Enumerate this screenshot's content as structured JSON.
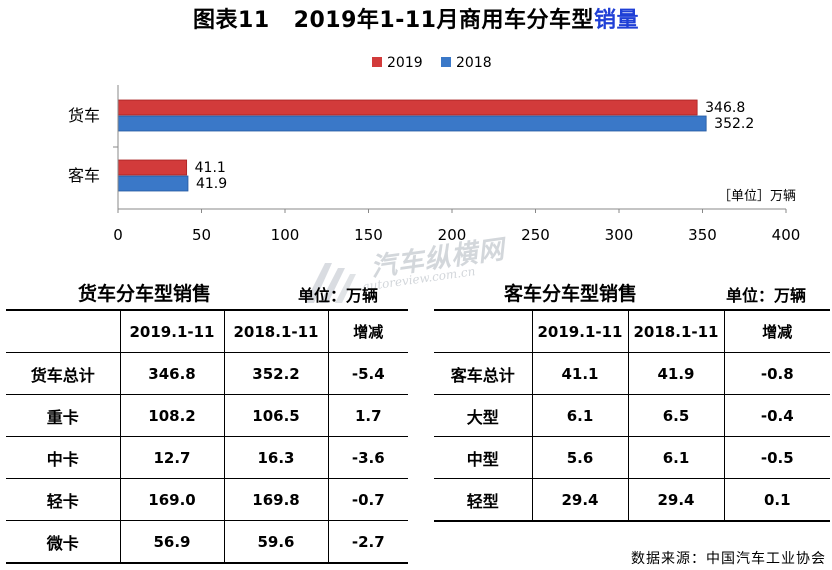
{
  "title": {
    "prefix": "图表11",
    "main": "2019年1-11月商用车分车型",
    "highlight": "销量"
  },
  "colors": {
    "series2019": "#d23b3b",
    "series2018": "#3a78c8",
    "title_highlight": "#1f3fd6"
  },
  "chart_data": {
    "type": "bar",
    "orientation": "horizontal",
    "categories": [
      "货车",
      "客车"
    ],
    "series": [
      {
        "name": "2019",
        "values": [
          346.8,
          41.1
        ]
      },
      {
        "name": "2018",
        "values": [
          352.2,
          41.9
        ]
      }
    ],
    "data_labels": [
      [
        "346.8",
        "41.1"
      ],
      [
        "352.2",
        "41.9"
      ]
    ],
    "xlim": [
      0,
      400
    ],
    "xticks": [
      "0",
      "50",
      "100",
      "150",
      "200",
      "250",
      "300",
      "350",
      "400"
    ],
    "unit_label": "［单位］万辆",
    "legend_position": "top",
    "grid": false
  },
  "watermark": {
    "main": "汽车纵横网",
    "sub": "autoreview.com.cn"
  },
  "truck_table": {
    "title": "货车分车型销售",
    "unit": "单位：万辆",
    "headers": [
      "",
      "2019.1-11",
      "2018.1-11",
      "增减"
    ],
    "rows": [
      [
        "货车总计",
        "346.8",
        "352.2",
        "-5.4"
      ],
      [
        "重卡",
        "108.2",
        "106.5",
        "1.7"
      ],
      [
        "中卡",
        "12.7",
        "16.3",
        "-3.6"
      ],
      [
        "轻卡",
        "169.0",
        "169.8",
        "-0.7"
      ],
      [
        "微卡",
        "56.9",
        "59.6",
        "-2.7"
      ]
    ]
  },
  "bus_table": {
    "title": "客车分车型销售",
    "unit": "单位：万辆",
    "headers": [
      "",
      "2019.1-11",
      "2018.1-11",
      "增减"
    ],
    "rows": [
      [
        "客车总计",
        "41.1",
        "41.9",
        "-0.8"
      ],
      [
        "大型",
        "6.1",
        "6.5",
        "-0.4"
      ],
      [
        "中型",
        "5.6",
        "6.1",
        "-0.5"
      ],
      [
        "轻型",
        "29.4",
        "29.4",
        "0.1"
      ]
    ]
  },
  "source": "数据来源：中国汽车工业协会"
}
